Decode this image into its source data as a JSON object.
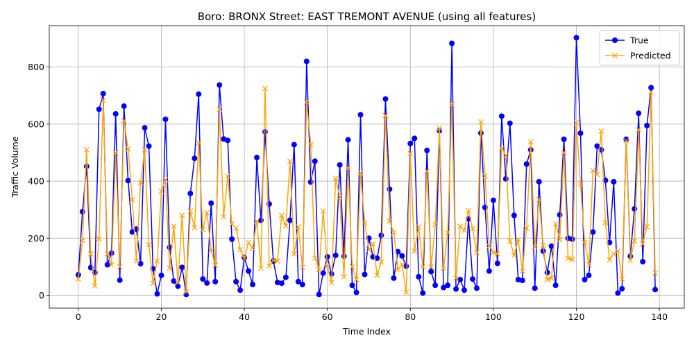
{
  "chart_data": {
    "type": "line",
    "title": "Boro: BRONX Street: EAST TREMONT AVENUE (using all features)",
    "xlabel": "Time Index",
    "ylabel": "Traffic Volume",
    "xlim": [
      -7,
      146
    ],
    "ylim": [
      -45,
      945
    ],
    "xticks": [
      0,
      20,
      40,
      60,
      80,
      100,
      120,
      140
    ],
    "yticks": [
      0,
      200,
      400,
      600,
      800
    ],
    "grid": true,
    "legend_position": "top-right",
    "series": [
      {
        "name": "True",
        "color": "#0000ff",
        "marker": "circle",
        "values": [
          72,
          293,
          452,
          97,
          80,
          652,
          707,
          107,
          148,
          636,
          53,
          663,
          402,
          222,
          232,
          111,
          587,
          523,
          93,
          5,
          70,
          617,
          168,
          50,
          32,
          98,
          3,
          357,
          480,
          705,
          57,
          43,
          323,
          48,
          737,
          548,
          543,
          197,
          48,
          18,
          133,
          85,
          38,
          483,
          263,
          573,
          320,
          120,
          45,
          42,
          63,
          263,
          528,
          48,
          38,
          820,
          397,
          470,
          3,
          78,
          135,
          75,
          140,
          457,
          137,
          545,
          35,
          10,
          633,
          73,
          200,
          135,
          130,
          210,
          688,
          372,
          60,
          153,
          138,
          102,
          532,
          550,
          65,
          8,
          508,
          83,
          35,
          577,
          27,
          35,
          883,
          22,
          55,
          18,
          268,
          57,
          25,
          568,
          308,
          85,
          333,
          112,
          628,
          408,
          603,
          280,
          55,
          52,
          460,
          510,
          25,
          398,
          155,
          80,
          172,
          35,
          282,
          547,
          200,
          197,
          903,
          568,
          55,
          70,
          222,
          523,
          510,
          403,
          185,
          398,
          8,
          23,
          547,
          137,
          303,
          638,
          118,
          595,
          728,
          20
        ]
      },
      {
        "name": "Predicted",
        "color": "#ffa500",
        "marker": "x",
        "values": [
          57,
          192,
          510,
          145,
          33,
          198,
          683,
          145,
          107,
          500,
          100,
          612,
          512,
          335,
          120,
          395,
          510,
          177,
          42,
          120,
          365,
          405,
          95,
          242,
          45,
          280,
          12,
          295,
          237,
          535,
          230,
          290,
          158,
          105,
          652,
          275,
          418,
          250,
          235,
          160,
          130,
          185,
          165,
          260,
          95,
          725,
          103,
          123,
          120,
          280,
          243,
          470,
          145,
          240,
          98,
          677,
          528,
          130,
          90,
          295,
          102,
          45,
          410,
          345,
          65,
          445,
          100,
          55,
          428,
          255,
          160,
          180,
          70,
          117,
          630,
          260,
          220,
          90,
          108,
          10,
          497,
          155,
          240,
          100,
          435,
          100,
          248,
          585,
          95,
          220,
          668,
          60,
          242,
          228,
          297,
          233,
          150,
          608,
          418,
          173,
          150,
          145,
          515,
          490,
          190,
          140,
          195,
          85,
          235,
          538,
          170,
          335,
          175,
          55,
          60,
          250,
          195,
          500,
          130,
          125,
          605,
          390,
          185,
          108,
          437,
          423,
          575,
          255,
          125,
          145,
          155,
          57,
          542,
          123,
          190,
          580,
          180,
          240,
          713,
          78
        ]
      }
    ]
  }
}
